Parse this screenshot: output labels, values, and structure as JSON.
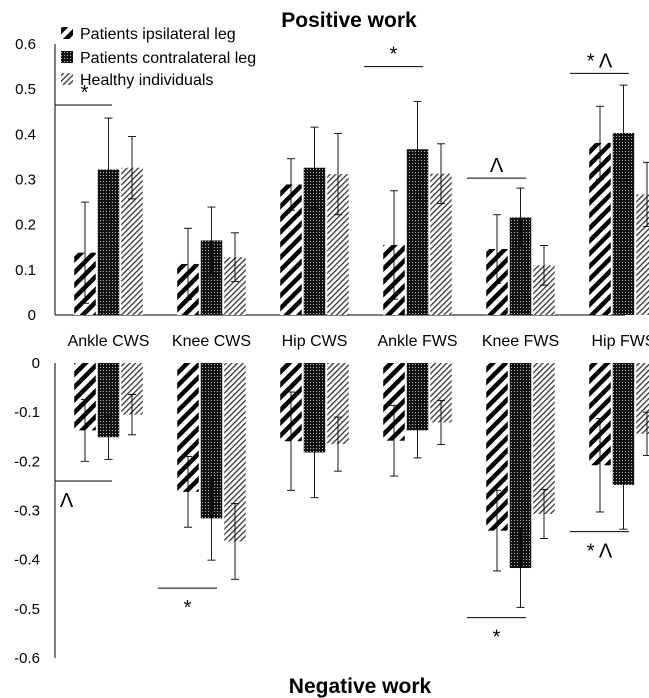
{
  "chart_data": {
    "type": "bar",
    "title_top": "Positive work",
    "title_bottom": "Negative work",
    "categories": [
      "Ankle CWS",
      "Knee CWS",
      "Hip CWS",
      "Ankle FWS",
      "Knee FWS",
      "Hip FWS"
    ],
    "series": [
      {
        "name": "Patients ipsilateral leg",
        "pattern": "diagonal-thick",
        "positive": [
          0.138,
          0.113,
          0.289,
          0.155,
          0.146,
          0.381
        ],
        "positive_err": [
          0.112,
          0.079,
          0.057,
          0.12,
          0.076,
          0.081
        ],
        "negative": [
          -0.137,
          -0.262,
          -0.159,
          -0.158,
          -0.341,
          -0.208
        ],
        "negative_err": [
          0.063,
          0.072,
          0.1,
          0.072,
          0.082,
          0.095
        ]
      },
      {
        "name": "Patients contralateral leg",
        "pattern": "dots",
        "positive": [
          0.322,
          0.165,
          0.326,
          0.367,
          0.216,
          0.403
        ],
        "positive_err": [
          0.114,
          0.074,
          0.09,
          0.106,
          0.065,
          0.106
        ],
        "negative": [
          -0.151,
          -0.316,
          -0.182,
          -0.137,
          -0.417,
          -0.248
        ],
        "negative_err": [
          0.045,
          0.085,
          0.092,
          0.056,
          0.08,
          0.09
        ]
      },
      {
        "name": "Healthy individuals",
        "pattern": "diagonal-fine",
        "positive": [
          0.326,
          0.128,
          0.312,
          0.313,
          0.11,
          0.267
        ],
        "positive_err": [
          0.069,
          0.054,
          0.09,
          0.066,
          0.044,
          0.071
        ],
        "negative": [
          -0.105,
          -0.363,
          -0.165,
          -0.121,
          -0.307,
          -0.144
        ],
        "negative_err": [
          0.041,
          0.077,
          0.055,
          0.045,
          0.05,
          0.044
        ]
      }
    ],
    "positive_axis": {
      "ylim": [
        0,
        0.6
      ],
      "ticks": [
        "0",
        "0.1",
        "0.2",
        "0.3",
        "0.4",
        "0.5",
        "0.6"
      ]
    },
    "negative_axis": {
      "ylim": [
        -0.6,
        0
      ],
      "ticks": [
        "0",
        "-0.1",
        "-0.2",
        "-0.3",
        "-0.4",
        "-0.5",
        "-0.6"
      ]
    },
    "annotations": [
      {
        "panel": "positive",
        "label": "*",
        "line_y": 0.465,
        "from_cat": 0,
        "to_cat": 0
      },
      {
        "panel": "positive",
        "label": "*",
        "line_y": 0.55,
        "from_cat": 3,
        "to_cat": 3
      },
      {
        "panel": "positive",
        "label": "Λ",
        "line_y": 0.303,
        "from_cat": 4,
        "to_cat": 4
      },
      {
        "panel": "positive",
        "label": "* Λ",
        "line_y": 0.535,
        "from_cat": 5,
        "to_cat": 5
      },
      {
        "panel": "negative",
        "label": "Λ",
        "line_y": -0.24,
        "from_cat": 0,
        "to_cat": 0
      },
      {
        "panel": "negative",
        "label": "*",
        "line_y": -0.458,
        "from_cat": 1,
        "to_cat": 1
      },
      {
        "panel": "negative",
        "label": "*",
        "line_y": -0.518,
        "from_cat": 4,
        "to_cat": 4
      },
      {
        "panel": "negative",
        "label": "* Λ",
        "line_y": -0.343,
        "from_cat": 5,
        "to_cat": 5
      }
    ],
    "legend_position": "top-left",
    "grid": false
  }
}
